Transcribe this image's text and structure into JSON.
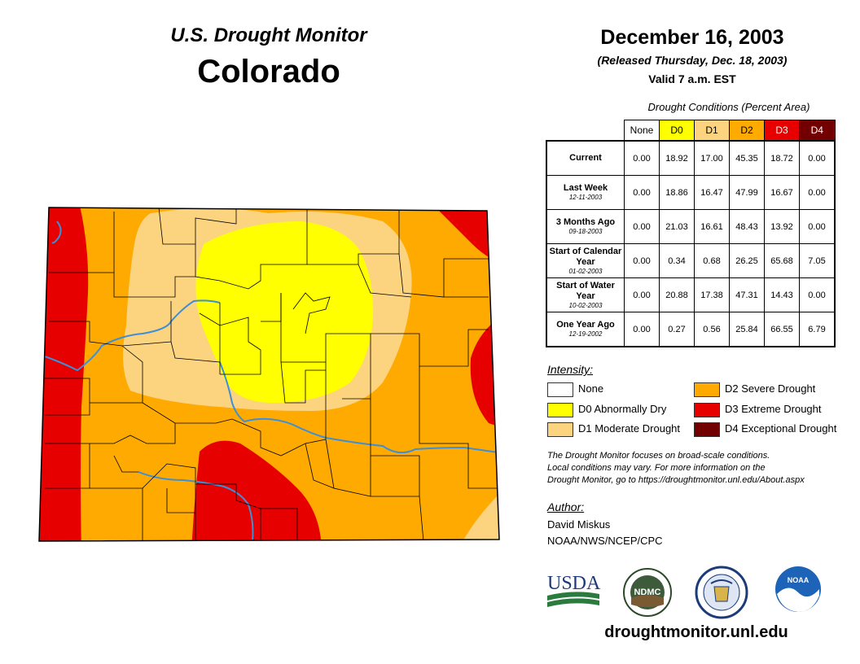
{
  "header": {
    "title": "U.S. Drought Monitor",
    "state": "Colorado",
    "date": "December 16, 2003",
    "released": "(Released Thursday, Dec. 18, 2003)",
    "valid": "Valid 7 a.m. EST"
  },
  "table": {
    "caption": "Drought Conditions (Percent Area)",
    "columns": [
      "None",
      "D0",
      "D1",
      "D2",
      "D3",
      "D4"
    ],
    "column_colors": [
      "#ffffff",
      "#ffff00",
      "#fcd37f",
      "#ffaa00",
      "#e60000",
      "#730000"
    ],
    "rows": [
      {
        "label": "Current",
        "date": "",
        "values": [
          "0.00",
          "18.92",
          "17.00",
          "45.35",
          "18.72",
          "0.00"
        ]
      },
      {
        "label": "Last Week",
        "date": "12-11-2003",
        "values": [
          "0.00",
          "18.86",
          "16.47",
          "47.99",
          "16.67",
          "0.00"
        ]
      },
      {
        "label": "3 Months Ago",
        "date": "09-18-2003",
        "values": [
          "0.00",
          "21.03",
          "16.61",
          "48.43",
          "13.92",
          "0.00"
        ]
      },
      {
        "label": "Start of Calendar Year",
        "date": "01-02-2003",
        "values": [
          "0.00",
          "0.34",
          "0.68",
          "26.25",
          "65.68",
          "7.05"
        ]
      },
      {
        "label": "Start of Water Year",
        "date": "10-02-2003",
        "values": [
          "0.00",
          "20.88",
          "17.38",
          "47.31",
          "14.43",
          "0.00"
        ]
      },
      {
        "label": "One Year Ago",
        "date": "12-19-2002",
        "values": [
          "0.00",
          "0.27",
          "0.56",
          "25.84",
          "66.55",
          "6.79"
        ]
      }
    ]
  },
  "legend": {
    "title": "Intensity:",
    "items": [
      {
        "label": "None",
        "color": "#ffffff"
      },
      {
        "label": "D0 Abnormally Dry",
        "color": "#ffff00"
      },
      {
        "label": "D1 Moderate Drought",
        "color": "#fcd37f"
      },
      {
        "label": "D2 Severe Drought",
        "color": "#ffaa00"
      },
      {
        "label": "D3 Extreme Drought",
        "color": "#e60000"
      },
      {
        "label": "D4 Exceptional Drought",
        "color": "#730000"
      }
    ]
  },
  "note": {
    "line1": "The Drought Monitor focuses on broad-scale conditions.",
    "line2": "Local conditions may vary. For more information on the",
    "line3": "Drought Monitor, go to https://droughtmonitor.unl.edu/About.aspx"
  },
  "author": {
    "title": "Author:",
    "name": "David Miskus",
    "org": "NOAA/NWS/NCEP/CPC"
  },
  "logos": {
    "usda": "USDA",
    "ndmc": "NDMC",
    "noaa": "NOAA"
  },
  "website": "droughtmonitor.unl.edu",
  "map_colors": {
    "d0": "#ffff00",
    "d1": "#fcd37f",
    "d2": "#ffaa00",
    "d3": "#e60000",
    "river": "#3c8fd8",
    "county_line": "#000000"
  }
}
